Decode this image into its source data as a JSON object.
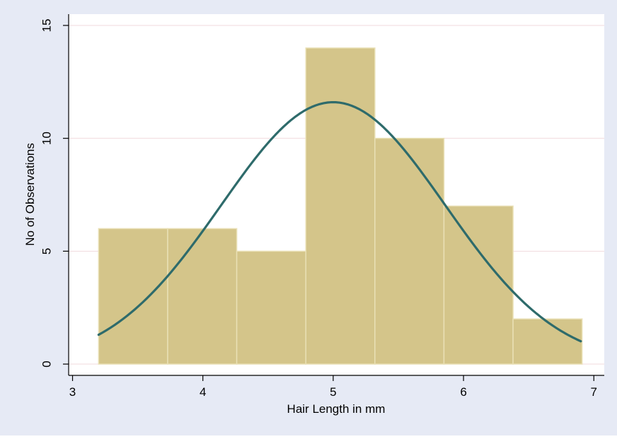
{
  "chart_data": {
    "type": "bar",
    "subtype": "histogram-with-normal-curve",
    "xlabel": "Hair Length in mm",
    "ylabel": "No of Observations",
    "xlim": [
      2.97,
      7.08
    ],
    "ylim": [
      -0.5,
      15.5
    ],
    "x_ticks": [
      3,
      4,
      5,
      6,
      7
    ],
    "y_ticks": [
      0,
      5,
      10,
      15
    ],
    "grid": "horizontal",
    "bins": [
      {
        "start": 3.2,
        "end": 3.73,
        "count": 6
      },
      {
        "start": 3.73,
        "end": 4.26,
        "count": 6
      },
      {
        "start": 4.26,
        "end": 4.79,
        "count": 5
      },
      {
        "start": 4.79,
        "end": 5.32,
        "count": 14
      },
      {
        "start": 5.32,
        "end": 5.85,
        "count": 10
      },
      {
        "start": 5.85,
        "end": 6.38,
        "count": 7
      },
      {
        "start": 6.38,
        "end": 6.91,
        "count": 2
      }
    ],
    "curve": {
      "type": "normal-density",
      "mean": 5.0,
      "peak": 11.6,
      "sd": 0.86,
      "x_range": [
        3.2,
        6.9
      ]
    },
    "colors": {
      "background": "#e6eaf5",
      "plot_area": "#ffffff",
      "bar_fill": "#d4c58a",
      "bar_edge": "#e9e0b5",
      "curve": "#2e6b6b",
      "grid": "#f1d9dd"
    }
  }
}
